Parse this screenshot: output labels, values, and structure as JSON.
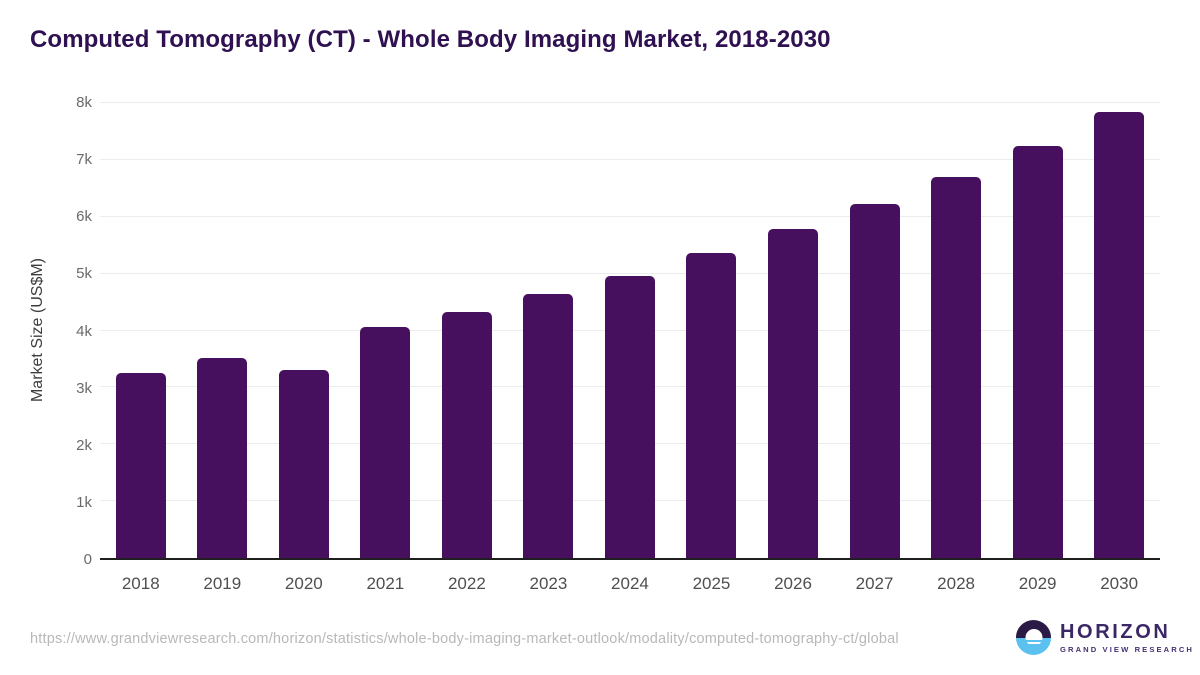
{
  "page": {
    "title": "Computed Tomography (CT) - Whole Body Imaging Market, 2018-2030"
  },
  "chart_data": {
    "type": "bar",
    "title": "Computed Tomography (CT) - Whole Body Imaging Market, 2018-2030",
    "xlabel": "",
    "ylabel": "Market Size (US$M)",
    "categories": [
      "2018",
      "2019",
      "2020",
      "2021",
      "2022",
      "2023",
      "2024",
      "2025",
      "2026",
      "2027",
      "2028",
      "2029",
      "2030"
    ],
    "values": [
      3260,
      3510,
      3300,
      4060,
      4330,
      4650,
      4960,
      5360,
      5780,
      6230,
      6700,
      7250,
      7850
    ],
    "ylim": [
      0,
      8000
    ],
    "yticks": [
      {
        "value": 0,
        "label": "0"
      },
      {
        "value": 1000,
        "label": "1k"
      },
      {
        "value": 2000,
        "label": "2k"
      },
      {
        "value": 3000,
        "label": "3k"
      },
      {
        "value": 4000,
        "label": "4k"
      },
      {
        "value": 5000,
        "label": "5k"
      },
      {
        "value": 6000,
        "label": "6k"
      },
      {
        "value": 7000,
        "label": "7k"
      },
      {
        "value": 8000,
        "label": "8k"
      }
    ],
    "grid": true,
    "legend": "none"
  },
  "footer": {
    "source_url": "https://www.grandviewresearch.com/horizon/statistics/whole-body-imaging-market-outlook/modality/computed-tomography-ct/global",
    "logo": {
      "name": "HORIZON",
      "tagline": "GRAND VIEW RESEARCH"
    }
  },
  "colors": {
    "bar": "#46105e",
    "title": "#2f1050",
    "axis_line": "#1f1f1f",
    "gridline": "#ececec",
    "y_tick_text": "#6a6a6a",
    "x_tick_text": "#4f4f4f",
    "url_text": "#b8b8b8",
    "logo_purple": "#2b1a45",
    "logo_blue": "#5bc2f0"
  }
}
